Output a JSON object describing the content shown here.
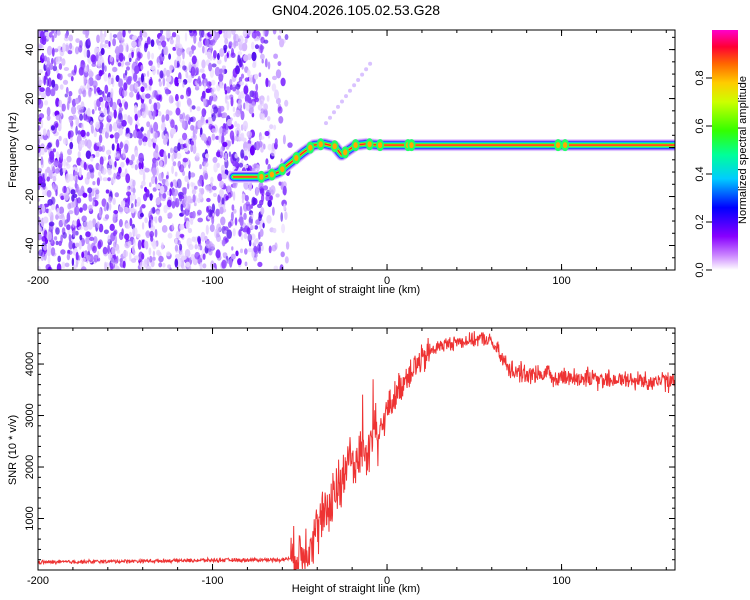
{
  "title": "GN04.2026.105.02.53.G28",
  "chart_data": [
    {
      "type": "heatmap",
      "title": "GN04.2026.105.02.53.G28",
      "xlabel": "Height of straight line (km)",
      "ylabel": "Frequency (Hz)",
      "xlim": [
        -200,
        165
      ],
      "ylim": [
        -50,
        48
      ],
      "x_ticks": [
        -200,
        -100,
        0,
        100
      ],
      "x_tick_labels": [
        "-200",
        "-100",
        "0",
        "100"
      ],
      "y_ticks": [
        -40,
        -20,
        0,
        20,
        40
      ],
      "y_tick_labels": [
        "-40",
        "-20",
        "0",
        "20",
        "40"
      ],
      "ridge": {
        "x": [
          -88,
          -70,
          -62,
          -55,
          -48,
          -42,
          -36,
          -30,
          -26,
          -22,
          -18,
          -12,
          -5,
          5,
          15,
          40,
          80,
          120,
          165
        ],
        "y": [
          -12,
          -12,
          -10,
          -6,
          -2,
          1,
          1.5,
          0.5,
          -3,
          -1,
          1,
          1.5,
          1,
          1,
          1,
          1,
          1,
          1,
          1
        ]
      },
      "noise_region_x": [
        -200,
        -57
      ],
      "colorbar": {
        "label": "Normalized spectral amplitude",
        "range": [
          0,
          1
        ],
        "ticks": [
          0.0,
          0.2,
          0.4,
          0.6,
          0.8
        ],
        "tick_labels": [
          "0.0",
          "0.2",
          "0.4",
          "0.6",
          "0.8"
        ],
        "colors": [
          "#ffffff",
          "#9900ff",
          "#0000ff",
          "#00ffff",
          "#00ff00",
          "#ffff00",
          "#ff8800",
          "#ff0000",
          "#ff00ff"
        ]
      }
    },
    {
      "type": "line",
      "xlabel": "Height of straight line (km)",
      "ylabel": "SNR (10 * v/v)",
      "xlim": [
        -200,
        165
      ],
      "ylim": [
        0,
        4700
      ],
      "x_ticks": [
        -200,
        -100,
        0,
        100
      ],
      "x_tick_labels": [
        "-200",
        "-100",
        "0",
        "100"
      ],
      "y_ticks": [
        1000,
        2000,
        3000,
        4000
      ],
      "y_tick_labels": [
        "1000",
        "2000",
        "3000",
        "4000"
      ],
      "color": "#ee3333",
      "series": [
        {
          "name": "SNR",
          "x": [
            -200,
            -150,
            -100,
            -60,
            -52,
            -48,
            -45,
            -40,
            -35,
            -30,
            -25,
            -22,
            -18,
            -15,
            -12,
            -8,
            -5,
            0,
            5,
            10,
            15,
            20,
            25,
            30,
            40,
            50,
            55,
            60,
            65,
            70,
            80,
            100,
            120,
            140,
            165
          ],
          "y": [
            150,
            170,
            190,
            200,
            250,
            350,
            500,
            800,
            1100,
            1550,
            1700,
            2300,
            2000,
            2350,
            2200,
            2700,
            2550,
            3100,
            3400,
            3700,
            3950,
            4050,
            4250,
            4350,
            4430,
            4470,
            4500,
            4430,
            4150,
            3900,
            3800,
            3750,
            3720,
            3680,
            3660
          ]
        }
      ]
    }
  ]
}
